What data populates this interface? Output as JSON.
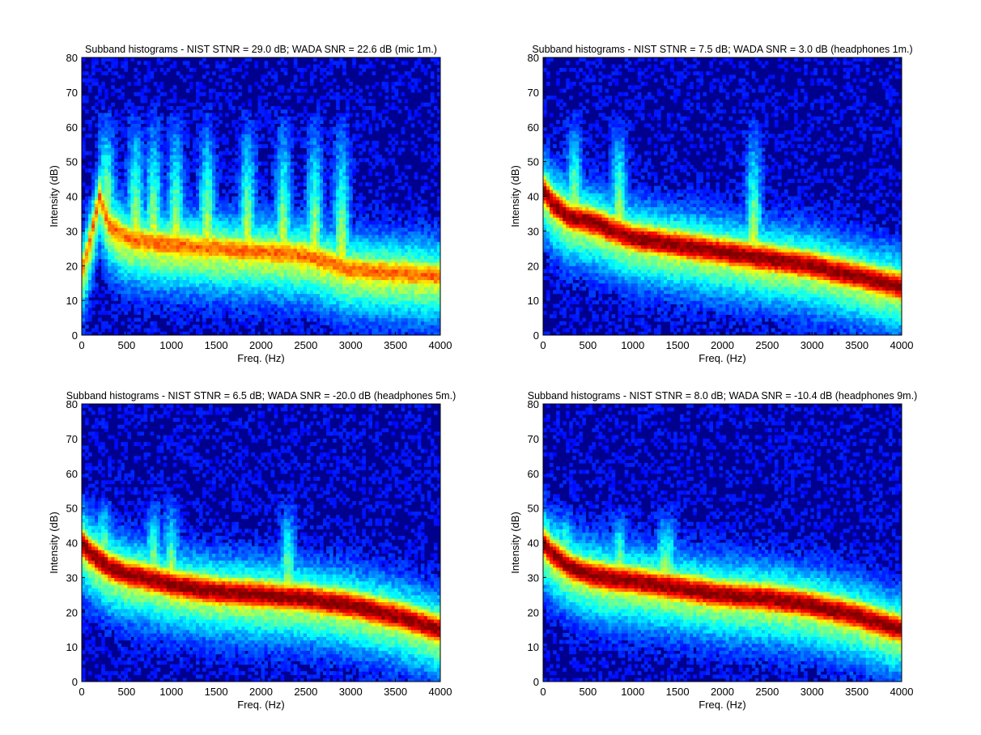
{
  "chart_data": [
    {
      "type": "heatmap",
      "title": "Subband histograms - NIST STNR = 29.0 dB; WADA SNR  = 22.6 dB (mic 1m.)",
      "xlabel": "Freq. (Hz)",
      "ylabel": "Intensity (dB)",
      "xlim": [
        0,
        4000
      ],
      "ylim": [
        0,
        80
      ],
      "xticks": [
        0,
        500,
        1000,
        1500,
        2000,
        2500,
        3000,
        3500,
        4000
      ],
      "yticks": [
        0,
        10,
        20,
        30,
        40,
        50,
        60,
        70,
        80
      ],
      "colormap": "jet",
      "background_color": "#00008f",
      "peak_color": "#7f0000",
      "ridge": {
        "freq_hz": [
          0,
          100,
          200,
          300,
          500,
          700,
          1000,
          1500,
          2000,
          2500,
          3000,
          3500,
          4000
        ],
        "intensity_db": [
          18,
          28,
          40,
          32,
          28,
          27,
          26,
          25,
          24,
          23,
          19,
          18,
          17
        ]
      },
      "band_width_db": 5,
      "band_strength": 0.75,
      "speech_peaks_hz": [
        280,
        600,
        800,
        1050,
        1400,
        1850,
        2250,
        2600,
        2900
      ],
      "speech_peak_top_db": 68
    },
    {
      "type": "heatmap",
      "title": "Subband histograms - NIST STNR = 7.5 dB; WADA SNR  = 3.0 dB (headphones 1m.)",
      "xlabel": "Freq. (Hz)",
      "ylabel": "Intensity (dB)",
      "xlim": [
        0,
        4000
      ],
      "ylim": [
        0,
        80
      ],
      "xticks": [
        0,
        500,
        1000,
        1500,
        2000,
        2500,
        3000,
        3500,
        4000
      ],
      "yticks": [
        0,
        10,
        20,
        30,
        40,
        50,
        60,
        70,
        80
      ],
      "colormap": "jet",
      "background_color": "#00008f",
      "peak_color": "#7f0000",
      "ridge": {
        "freq_hz": [
          0,
          100,
          200,
          300,
          500,
          700,
          1000,
          1500,
          2000,
          2500,
          3000,
          3500,
          4000
        ],
        "intensity_db": [
          42,
          38,
          36,
          34,
          33,
          31,
          28,
          26,
          24,
          22,
          20,
          17,
          14
        ]
      },
      "band_width_db": 5,
      "band_strength": 1.0,
      "speech_peaks_hz": [
        350,
        850,
        2350
      ],
      "speech_peak_top_db": 66
    },
    {
      "type": "heatmap",
      "title": "Subband histograms - NIST STNR = 6.5 dB; WADA SNR  = -20.0 dB (headphones 5m.)",
      "xlabel": "Freq. (Hz)",
      "ylabel": "Intensity (dB)",
      "xlim": [
        0,
        4000
      ],
      "ylim": [
        0,
        80
      ],
      "xticks": [
        0,
        500,
        1000,
        1500,
        2000,
        2500,
        3000,
        3500,
        4000
      ],
      "yticks": [
        0,
        10,
        20,
        30,
        40,
        50,
        60,
        70,
        80
      ],
      "colormap": "jet",
      "background_color": "#00008f",
      "peak_color": "#7f0000",
      "ridge": {
        "freq_hz": [
          0,
          100,
          200,
          300,
          500,
          700,
          1000,
          1500,
          2000,
          2500,
          3000,
          3500,
          4000
        ],
        "intensity_db": [
          40,
          37,
          35,
          33,
          31,
          30,
          28,
          26,
          25,
          24,
          22,
          19,
          15
        ]
      },
      "band_width_db": 5,
      "band_strength": 1.0,
      "speech_peaks_hz": [
        250,
        800,
        1000,
        2300
      ],
      "speech_peak_top_db": 55
    },
    {
      "type": "heatmap",
      "title": "Subband histograms - NIST STNR = 8.0 dB; WADA SNR  = -10.4 dB (headphones 9m.)",
      "xlabel": "Freq. (Hz)",
      "ylabel": "Intensity (dB)",
      "xlim": [
        0,
        4000
      ],
      "ylim": [
        0,
        80
      ],
      "xticks": [
        0,
        500,
        1000,
        1500,
        2000,
        2500,
        3000,
        3500,
        4000
      ],
      "yticks": [
        0,
        10,
        20,
        30,
        40,
        50,
        60,
        70,
        80
      ],
      "colormap": "jet",
      "background_color": "#00008f",
      "peak_color": "#7f0000",
      "ridge": {
        "freq_hz": [
          0,
          100,
          200,
          300,
          500,
          700,
          1000,
          1500,
          2000,
          2500,
          3000,
          3500,
          4000
        ],
        "intensity_db": [
          40,
          37,
          35,
          33,
          31,
          30,
          29,
          27,
          25,
          24,
          22,
          19,
          15
        ]
      },
      "band_width_db": 5,
      "band_strength": 1.0,
      "speech_peaks_hz": [
        250,
        850,
        1350,
        1400
      ],
      "speech_peak_top_db": 52
    }
  ]
}
